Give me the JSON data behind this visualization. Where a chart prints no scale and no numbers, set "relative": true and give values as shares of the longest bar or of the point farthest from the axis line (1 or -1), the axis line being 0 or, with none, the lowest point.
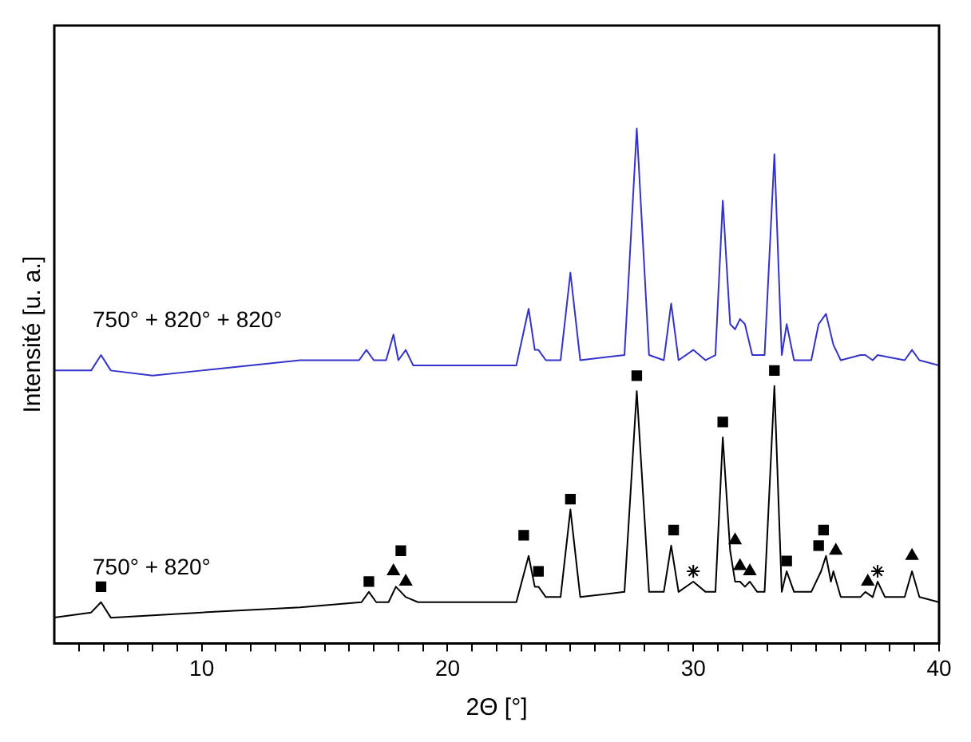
{
  "chart_data": {
    "type": "line",
    "xlabel": "2Θ [°]",
    "ylabel": "Intensité [u. a.]",
    "relative": true,
    "xlim": [
      4,
      40
    ],
    "xticks": [
      {
        "value": 5,
        "label": null
      },
      {
        "value": 6,
        "label": null
      },
      {
        "value": 7,
        "label": null
      },
      {
        "value": 8,
        "label": null
      },
      {
        "value": 9,
        "label": null
      },
      10,
      {
        "value": 11,
        "label": null
      },
      {
        "value": 12,
        "label": null
      },
      {
        "value": 13,
        "label": null
      },
      {
        "value": 14,
        "label": null
      },
      {
        "value": 15,
        "label": null
      },
      {
        "value": 16,
        "label": null
      },
      {
        "value": 17,
        "label": null
      },
      {
        "value": 18,
        "label": null
      },
      {
        "value": 19,
        "label": null
      },
      20,
      {
        "value": 21,
        "label": null
      },
      {
        "value": 22,
        "label": null
      },
      {
        "value": 23,
        "label": null
      },
      {
        "value": 24,
        "label": null
      },
      {
        "value": 25,
        "label": null
      },
      {
        "value": 26,
        "label": null
      },
      {
        "value": 27,
        "label": null
      },
      {
        "value": 28,
        "label": null
      },
      {
        "value": 29,
        "label": null
      },
      30,
      {
        "value": 31,
        "label": null
      },
      {
        "value": 32,
        "label": null
      },
      {
        "value": 33,
        "label": null
      },
      {
        "value": 34,
        "label": null
      },
      {
        "value": 35,
        "label": null
      },
      {
        "value": 36,
        "label": null
      },
      {
        "value": 37,
        "label": null
      },
      {
        "value": 38,
        "label": null
      },
      {
        "value": 39,
        "label": null
      },
      40
    ],
    "grid": false,
    "legend": false,
    "marker": "none",
    "line_style": "solid",
    "series": [
      {
        "name": "750° + 820°",
        "color": "#000000",
        "x": [
          4.0,
          5.5,
          5.9,
          6.3,
          10,
          14,
          16.5,
          16.8,
          17.1,
          17.6,
          17.9,
          18.3,
          18.8,
          22.8,
          23.3,
          23.55,
          23.7,
          24.0,
          24.6,
          25.0,
          25.4,
          27.2,
          27.7,
          28.2,
          28.8,
          29.1,
          29.4,
          30.0,
          30.5,
          30.9,
          31.2,
          31.5,
          31.7,
          31.9,
          32.1,
          32.3,
          32.6,
          32.9,
          33.3,
          33.6,
          33.8,
          34.1,
          34.8,
          35.2,
          35.4,
          35.6,
          35.7,
          36.0,
          36.8,
          37.0,
          37.3,
          37.5,
          37.8,
          38.6,
          38.9,
          39.2,
          40
        ],
        "values": [
          0.05,
          0.06,
          0.08,
          0.05,
          0.06,
          0.07,
          0.08,
          0.1,
          0.08,
          0.08,
          0.11,
          0.09,
          0.08,
          0.08,
          0.17,
          0.11,
          0.11,
          0.09,
          0.09,
          0.26,
          0.09,
          0.1,
          0.49,
          0.1,
          0.1,
          0.19,
          0.1,
          0.12,
          0.1,
          0.1,
          0.4,
          0.18,
          0.12,
          0.12,
          0.11,
          0.12,
          0.1,
          0.1,
          0.5,
          0.1,
          0.14,
          0.1,
          0.1,
          0.14,
          0.17,
          0.12,
          0.14,
          0.09,
          0.09,
          0.1,
          0.09,
          0.12,
          0.09,
          0.09,
          0.14,
          0.09,
          0.08
        ]
      },
      {
        "name": "750° + 820° + 820°",
        "color": "#3333cc",
        "x": [
          4.0,
          5.5,
          5.9,
          6.3,
          8,
          10,
          14,
          16.4,
          16.7,
          17.0,
          17.5,
          17.8,
          18.0,
          18.3,
          18.6,
          22.8,
          23.3,
          23.55,
          23.7,
          24.0,
          24.6,
          25.0,
          25.4,
          27.2,
          27.7,
          28.2,
          28.8,
          29.1,
          29.4,
          30.0,
          30.5,
          30.9,
          31.2,
          31.5,
          31.7,
          31.9,
          32.1,
          32.4,
          32.9,
          33.3,
          33.6,
          33.8,
          34.1,
          34.8,
          35.1,
          35.4,
          35.7,
          36.0,
          36.8,
          37.0,
          37.3,
          37.5,
          38.6,
          38.9,
          39.2,
          40
        ],
        "values": [
          0.53,
          0.53,
          0.56,
          0.53,
          0.52,
          0.53,
          0.55,
          0.55,
          0.57,
          0.55,
          0.55,
          0.6,
          0.55,
          0.57,
          0.54,
          0.54,
          0.65,
          0.57,
          0.57,
          0.55,
          0.55,
          0.72,
          0.55,
          0.56,
          1.0,
          0.56,
          0.55,
          0.66,
          0.55,
          0.57,
          0.55,
          0.56,
          0.86,
          0.62,
          0.61,
          0.63,
          0.62,
          0.56,
          0.56,
          0.95,
          0.56,
          0.62,
          0.55,
          0.55,
          0.62,
          0.64,
          0.58,
          0.55,
          0.56,
          0.56,
          0.55,
          0.56,
          0.55,
          0.57,
          0.55,
          0.54
        ]
      },
      {
        "type": "scatter",
        "marker": "square",
        "color": "#000000",
        "x": [
          5.9,
          16.8,
          18.1,
          23.1,
          23.7,
          25.0,
          27.7,
          29.2,
          31.2,
          33.3,
          33.8,
          35.1,
          35.3
        ],
        "values": [
          0.11,
          0.12,
          0.18,
          0.21,
          0.14,
          0.28,
          0.52,
          0.22,
          0.43,
          0.53,
          0.16,
          0.19,
          0.22
        ]
      },
      {
        "type": "scatter",
        "marker": "cross",
        "color": "#000000",
        "x": [
          30.0,
          37.5
        ],
        "values": [
          0.14,
          0.14
        ]
      },
      {
        "type": "scatter",
        "marker": "triangle",
        "color": "#000000",
        "x": [
          17.8,
          18.3,
          31.7,
          31.9,
          32.3,
          37.1
        ],
        "values": [
          0.14,
          0.12,
          0.2,
          0.15,
          0.14,
          0.12
        ]
      },
      {
        "type": "scatter",
        "marker": "triangle",
        "color": "#000000",
        "x": [
          35.8,
          38.9
        ],
        "values": [
          0.18,
          0.17
        ]
      }
    ]
  }
}
